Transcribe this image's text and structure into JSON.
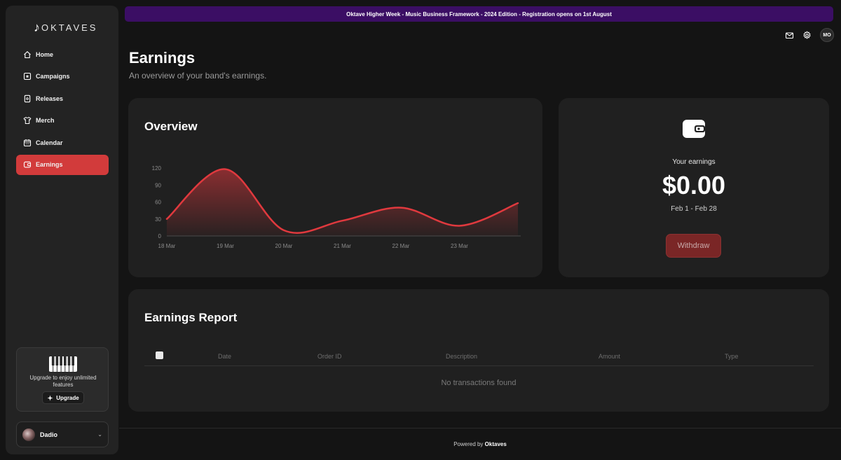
{
  "app": {
    "logo_text": "OKTAVES",
    "logo_note": "♪"
  },
  "banner": {
    "text": "Oktave Higher Week - Music Business Framework - 2024 Edition - Registration opens on 1st August"
  },
  "nav": {
    "items": [
      {
        "label": "Home",
        "icon": "home-icon"
      },
      {
        "label": "Campaigns",
        "icon": "star-box-icon"
      },
      {
        "label": "Releases",
        "icon": "document-icon"
      },
      {
        "label": "Merch",
        "icon": "tshirt-icon"
      },
      {
        "label": "Calendar",
        "icon": "calendar-icon"
      },
      {
        "label": "Earnings",
        "icon": "wallet-icon",
        "active": true
      }
    ]
  },
  "upgrade": {
    "text": "Upgrade to enjoy unlimited features",
    "button": "Upgrade"
  },
  "user": {
    "name": "Dadio"
  },
  "header": {
    "avatar_initials": "MO"
  },
  "page": {
    "title": "Earnings",
    "subtitle": "An overview of your band's earnings."
  },
  "overview": {
    "title": "Overview"
  },
  "chart_data": {
    "type": "area",
    "x": [
      "18 Mar",
      "19 Mar",
      "20 Mar",
      "21 Mar",
      "22 Mar",
      "23 Mar",
      ""
    ],
    "y_ticks": [
      0,
      30,
      60,
      90,
      120
    ],
    "values": [
      30,
      118,
      10,
      27,
      50,
      18,
      58
    ],
    "ylim": [
      0,
      120
    ],
    "color": "#e0393e",
    "grid": false
  },
  "earnings": {
    "label": "Your earnings",
    "amount": "$0.00",
    "range": "Feb 1 - Feb 28",
    "withdraw": "Withdraw"
  },
  "report": {
    "title": "Earnings Report",
    "columns": [
      "Date",
      "Order ID",
      "Description",
      "Amount",
      "Type"
    ],
    "empty": "No transactions found"
  },
  "footer": {
    "prefix": "Powered by",
    "brand": "Oktaves"
  }
}
